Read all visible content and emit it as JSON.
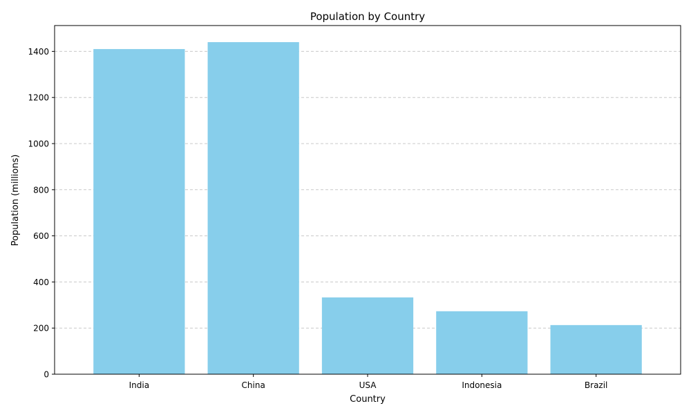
{
  "chart_data": {
    "type": "bar",
    "title": "Population by Country",
    "xlabel": "Country",
    "ylabel": "Population (millions)",
    "categories": [
      "India",
      "China",
      "USA",
      "Indonesia",
      "Brazil"
    ],
    "values": [
      1410,
      1440,
      333,
      273,
      213
    ],
    "ylim": [
      0,
      1512
    ],
    "yticks": [
      0,
      200,
      400,
      600,
      800,
      1000,
      1200,
      1400
    ],
    "grid": "y-dashed",
    "bar_color": "#87ceeb"
  }
}
